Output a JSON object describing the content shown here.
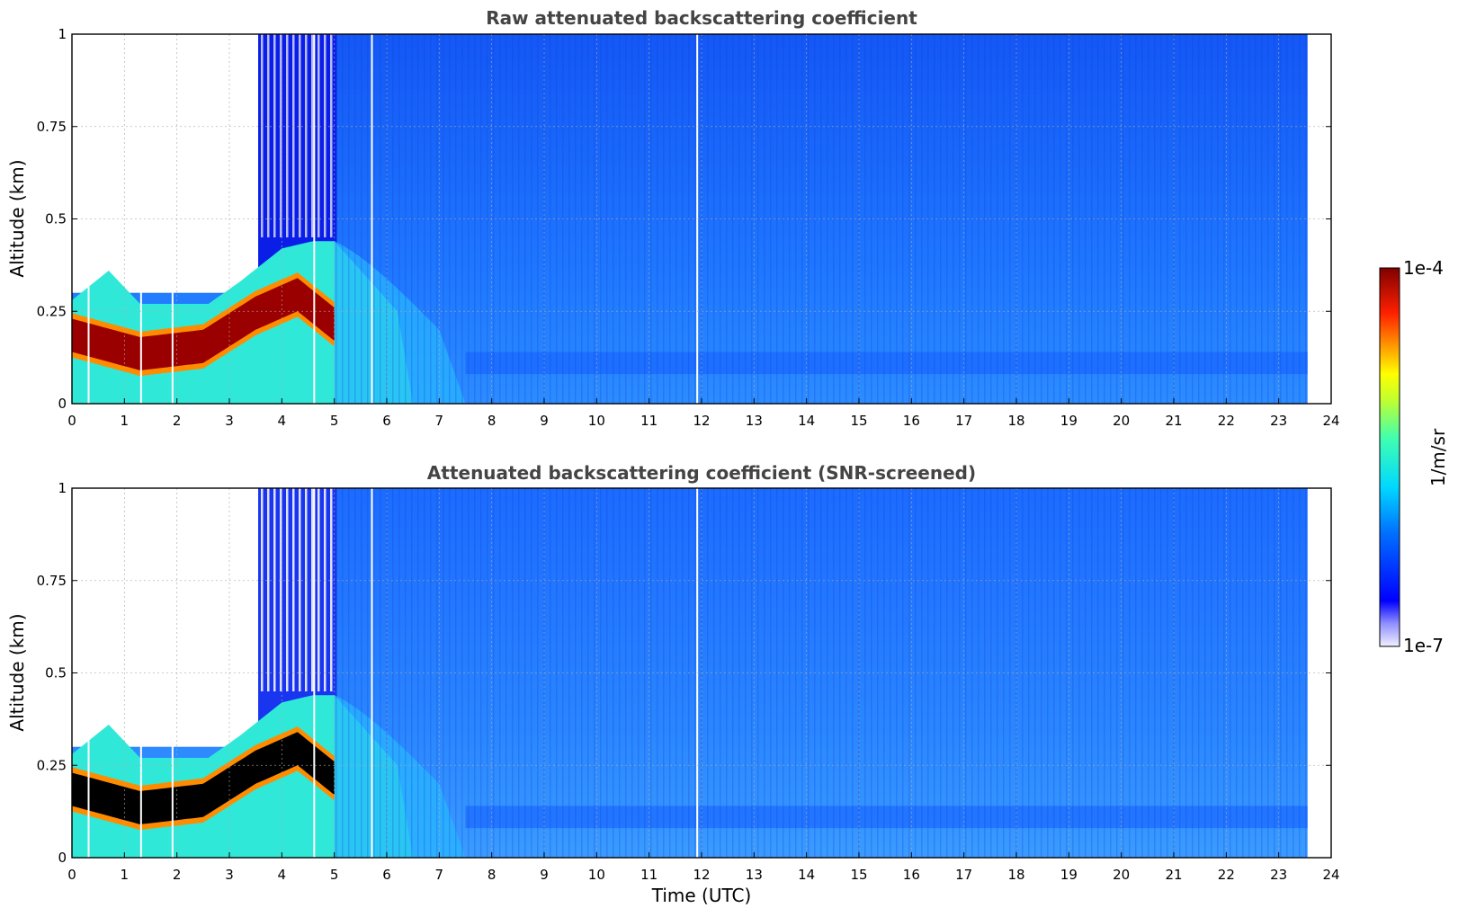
{
  "chart_data": [
    {
      "type": "heatmap",
      "title": "Raw attenuated backscattering coefficient",
      "xlabel": "",
      "ylabel": "Altitude (km)",
      "xlim": [
        0,
        24
      ],
      "ylim": [
        0,
        1
      ],
      "xticks": [
        "0",
        "1",
        "2",
        "3",
        "4",
        "5",
        "6",
        "7",
        "8",
        "9",
        "10",
        "11",
        "12",
        "13",
        "14",
        "15",
        "16",
        "17",
        "18",
        "19",
        "20",
        "21",
        "22",
        "23",
        "24"
      ],
      "yticks": [
        "0",
        "0.25",
        "0.5",
        "0.75",
        "1"
      ],
      "data_end_time": 23.55,
      "grid": true,
      "features": {
        "aerosol_layer_top_km": [
          {
            "t": 0,
            "z": 0.28
          },
          {
            "t": 0.7,
            "z": 0.36
          },
          {
            "t": 1.3,
            "z": 0.27
          },
          {
            "t": 2.6,
            "z": 0.27
          },
          {
            "t": 3.2,
            "z": 0.33
          },
          {
            "t": 4.0,
            "z": 0.42
          },
          {
            "t": 4.6,
            "z": 0.44
          },
          {
            "t": 5.0,
            "z": 0.44
          }
        ],
        "peak_layer_km": [
          {
            "t": 0,
            "z": 0.19
          },
          {
            "t": 1.3,
            "z": 0.14
          },
          {
            "t": 2.5,
            "z": 0.16
          },
          {
            "t": 3.5,
            "z": 0.25
          },
          {
            "t": 4.3,
            "z": 0.3
          },
          {
            "t": 5.0,
            "z": 0.22
          }
        ],
        "dropout_times_utc": [
          0.3,
          1.3,
          1.9,
          4.6,
          5.7,
          11.9
        ]
      }
    },
    {
      "type": "heatmap",
      "title": "Attenuated backscattering coefficient (SNR-screened)",
      "xlabel": "Time (UTC)",
      "ylabel": "Altitude (km)",
      "xlim": [
        0,
        24
      ],
      "ylim": [
        0,
        1
      ],
      "xticks": [
        "0",
        "1",
        "2",
        "3",
        "4",
        "5",
        "6",
        "7",
        "8",
        "9",
        "10",
        "11",
        "12",
        "13",
        "14",
        "15",
        "16",
        "17",
        "18",
        "19",
        "20",
        "21",
        "22",
        "23",
        "24"
      ],
      "yticks": [
        "0",
        "0.25",
        "0.5",
        "0.75",
        "1"
      ],
      "data_end_time": 23.55,
      "grid": true
    }
  ],
  "colorbar": {
    "label": "1/m/sr",
    "max_label": "1e-4",
    "min_label": "1e-7",
    "min": 1e-07,
    "max": 0.0001,
    "scale": "log",
    "colormap": "jet",
    "colors": [
      "#000080",
      "#0000ff",
      "#00ffff",
      "#ffff00",
      "#ff0000",
      "#800000"
    ]
  }
}
